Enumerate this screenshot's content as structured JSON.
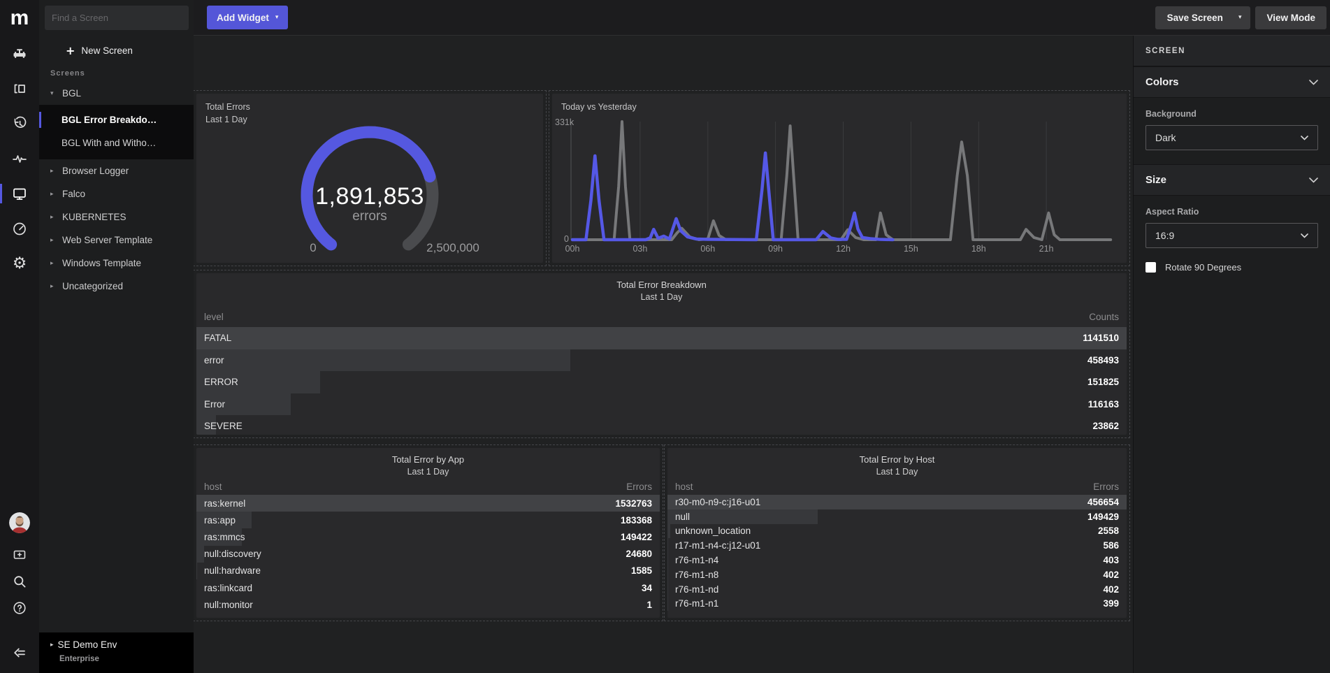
{
  "colors": {
    "accent": "#5558e0",
    "button_primary": "#5456d8",
    "gauge_track": "#4a4b4e",
    "line_today": "#5558e6",
    "line_yesterday": "#77787a",
    "bar_fill": "#37383b",
    "bar_fill_max": "#414245"
  },
  "icons": {
    "caret_down": "▾",
    "caret_right": "▸",
    "plus": "+",
    "sidebar_icons": [
      "pipeline-icon",
      "panels-icon",
      "history-icon",
      "activity-icon",
      "screens-icon",
      "gauge-icon",
      "settings-icon",
      "monitor-add-icon",
      "search-icon",
      "help-icon",
      "collapse-sidebar-icon"
    ]
  },
  "iconbar": {
    "logo": "m"
  },
  "topbar": {
    "add_widget": "Add Widget",
    "save_screen": "Save Screen",
    "view_mode": "View Mode"
  },
  "screens_panel": {
    "search_placeholder": "Find a Screen",
    "new_screen": "New Screen",
    "section_label": "Screens",
    "items": [
      {
        "label": "BGL",
        "expanded": true,
        "children": [
          {
            "label": "BGL Error Breakdo…",
            "selected": true
          },
          {
            "label": "BGL With and Witho…",
            "selected": false
          }
        ]
      },
      {
        "label": "Browser Logger"
      },
      {
        "label": "Falco"
      },
      {
        "label": "KUBERNETES"
      },
      {
        "label": "Web Server Template"
      },
      {
        "label": "Windows Template"
      },
      {
        "label": "Uncategorized"
      }
    ],
    "org_name": "SE Demo Env",
    "org_tier": "Enterprise"
  },
  "right_panel": {
    "title": "SCREEN",
    "colors_section": "Colors",
    "background_label": "Background",
    "background_value": "Dark",
    "size_section": "Size",
    "aspect_label": "Aspect Ratio",
    "aspect_value": "16:9",
    "rotate_label": "Rotate 90 Degrees"
  },
  "chart_data": [
    {
      "type": "gauge",
      "title": "Total Errors",
      "subtitle": "Last 1 Day",
      "value": 1891853,
      "value_display": "1,891,853",
      "unit_label": "errors",
      "min": 0,
      "max": 2500000,
      "min_label": "0",
      "max_label": "2,500,000"
    },
    {
      "type": "line",
      "title": "Today vs Yesterday",
      "ymin": 0,
      "ymax": 331,
      "ymin_label": "0",
      "ymax_label": "331k",
      "x_range": [
        0,
        24
      ],
      "x_ticks": [
        "00h",
        "03h",
        "06h",
        "09h",
        "12h",
        "15h",
        "18h",
        "21h"
      ],
      "grid": true,
      "series": [
        {
          "name": "Yesterday",
          "points": [
            [
              0,
              0
            ],
            [
              1.85,
              0
            ],
            [
              2.05,
              150
            ],
            [
              2.2,
              331
            ],
            [
              2.35,
              150
            ],
            [
              2.55,
              0
            ],
            [
              4.4,
              0
            ],
            [
              4.65,
              20
            ],
            [
              4.85,
              32
            ],
            [
              5.2,
              8
            ],
            [
              5.6,
              0
            ],
            [
              6.0,
              2
            ],
            [
              6.25,
              53
            ],
            [
              6.5,
              12
            ],
            [
              6.8,
              0
            ],
            [
              9.25,
              0
            ],
            [
              9.5,
              180
            ],
            [
              9.65,
              319
            ],
            [
              9.8,
              180
            ],
            [
              10.0,
              0
            ],
            [
              11.9,
              0
            ],
            [
              12.2,
              28
            ],
            [
              12.55,
              6
            ],
            [
              12.9,
              0
            ],
            [
              13.45,
              0
            ],
            [
              13.65,
              75
            ],
            [
              13.9,
              14
            ],
            [
              14.2,
              0
            ],
            [
              16.75,
              0
            ],
            [
              17.05,
              180
            ],
            [
              17.25,
              274
            ],
            [
              17.5,
              180
            ],
            [
              17.75,
              0
            ],
            [
              19.85,
              0
            ],
            [
              20.1,
              29
            ],
            [
              20.45,
              6
            ],
            [
              20.8,
              0
            ],
            [
              21.1,
              75
            ],
            [
              21.35,
              14
            ],
            [
              21.6,
              0
            ],
            [
              23.85,
              0
            ]
          ]
        },
        {
          "name": "Today",
          "points": [
            [
              0,
              0
            ],
            [
              0.6,
              0
            ],
            [
              0.82,
              110
            ],
            [
              1.0,
              235
            ],
            [
              1.18,
              110
            ],
            [
              1.4,
              0
            ],
            [
              3.25,
              0
            ],
            [
              3.45,
              5
            ],
            [
              3.6,
              29
            ],
            [
              3.8,
              4
            ],
            [
              4.05,
              10
            ],
            [
              4.3,
              2
            ],
            [
              4.6,
              59
            ],
            [
              4.8,
              25
            ],
            [
              5.1,
              8
            ],
            [
              5.5,
              2
            ],
            [
              6.0,
              1
            ],
            [
              8.15,
              0
            ],
            [
              8.4,
              140
            ],
            [
              8.55,
              243
            ],
            [
              8.7,
              140
            ],
            [
              8.9,
              0
            ],
            [
              10.8,
              0
            ],
            [
              11.1,
              23
            ],
            [
              11.45,
              5
            ],
            [
              11.75,
              1
            ],
            [
              12.15,
              1
            ],
            [
              12.35,
              40
            ],
            [
              12.5,
              75
            ],
            [
              12.65,
              30
            ],
            [
              12.85,
              6
            ],
            [
              13.2,
              3
            ],
            [
              13.6,
              1
            ],
            [
              14.2,
              0
            ]
          ]
        }
      ]
    },
    {
      "type": "table",
      "title": "Total Error Breakdown",
      "subtitle": "Last 1 Day",
      "key_header": "level",
      "value_header": "Counts",
      "rows": [
        {
          "label": "FATAL",
          "value": 1141510
        },
        {
          "label": "error",
          "value": 458493
        },
        {
          "label": "ERROR",
          "value": 151825
        },
        {
          "label": "Error",
          "value": 116163
        },
        {
          "label": "SEVERE",
          "value": 23862
        }
      ]
    },
    {
      "type": "table",
      "title": "Total Error by App",
      "subtitle": "Last 1 Day",
      "key_header": "host",
      "value_header": "Errors",
      "rows": [
        {
          "label": "ras:kernel",
          "value": 1532763
        },
        {
          "label": "ras:app",
          "value": 183368
        },
        {
          "label": "ras:mmcs",
          "value": 149422
        },
        {
          "label": "null:discovery",
          "value": 24680
        },
        {
          "label": "null:hardware",
          "value": 1585
        },
        {
          "label": "ras:linkcard",
          "value": 34
        },
        {
          "label": "null:monitor",
          "value": 1
        }
      ]
    },
    {
      "type": "table",
      "title": "Total Error by Host",
      "subtitle": "Last 1 Day",
      "key_header": "host",
      "value_header": "Errors",
      "rows": [
        {
          "label": "r30-m0-n9-c:j16-u01",
          "value": 456654
        },
        {
          "label": "null",
          "value": 149429
        },
        {
          "label": "unknown_location",
          "value": 2558
        },
        {
          "label": "r17-m1-n4-c:j12-u01",
          "value": 586
        },
        {
          "label": "r76-m1-n4",
          "value": 403
        },
        {
          "label": "r76-m1-n8",
          "value": 402
        },
        {
          "label": "r76-m1-nd",
          "value": 402
        },
        {
          "label": "r76-m1-n1",
          "value": 399
        }
      ]
    }
  ]
}
